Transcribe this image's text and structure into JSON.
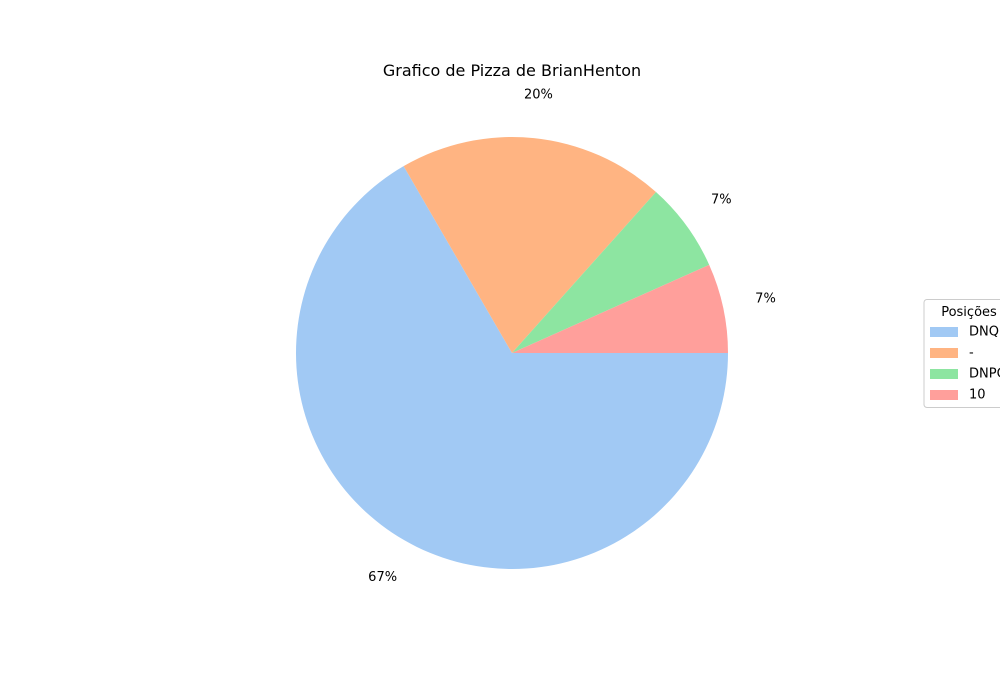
{
  "chart_data": {
    "type": "pie",
    "title": "Grafico de Pizza de BrianHenton",
    "labels": [
      "DNQ",
      "-",
      "DNPQ",
      "10"
    ],
    "values": [
      66.7,
      20.0,
      6.7,
      6.7
    ],
    "pct_labels": [
      "67%",
      "20%",
      "7%",
      "7%"
    ],
    "colors": [
      "#a1c9f4",
      "#ffb482",
      "#8de5a1",
      "#ff9f9b"
    ],
    "start_angle_deg": 0,
    "direction": "clockwise",
    "legend": {
      "title": "Posições",
      "placement": "center-right"
    }
  }
}
